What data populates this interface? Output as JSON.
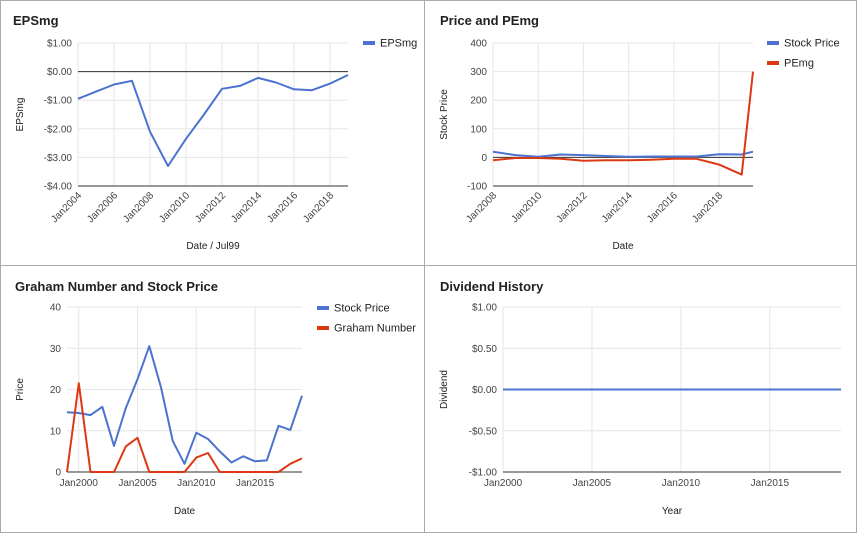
{
  "colors": {
    "blue": "#4c73cf",
    "red": "#dc3912",
    "grid": "#e6e6e6",
    "axis": "#333333"
  },
  "chart_data": [
    {
      "id": "eps",
      "type": "line",
      "title": "EPSmg",
      "xlabel": "Date / Jul99",
      "ylabel": "EPSmg",
      "xlim": [
        2004,
        2019
      ],
      "ylim": [
        -4,
        1
      ],
      "yticks": [
        1,
        0,
        -1,
        -2,
        -3,
        -4
      ],
      "ytick_labels": [
        "$1.00",
        "$0.00",
        "-$1.00",
        "-$2.00",
        "-$3.00",
        "-$4.00"
      ],
      "xticks": [
        2004,
        2006,
        2008,
        2010,
        2012,
        2014,
        2016,
        2018
      ],
      "xtick_labels": [
        "Jan2004",
        "Jan2006",
        "Jan2008",
        "Jan2010",
        "Jan2012",
        "Jan2014",
        "Jan2016",
        "Jan2018"
      ],
      "legend": "top-right",
      "series": [
        {
          "name": "EPSmg",
          "color": "#4c73cf",
          "x": [
            2004,
            2005,
            2006,
            2007,
            2008,
            2009,
            2010,
            2011,
            2012,
            2013,
            2014,
            2015,
            2016,
            2017,
            2018,
            2019
          ],
          "y": [
            -0.95,
            -0.7,
            -0.45,
            -0.32,
            -2.1,
            -3.3,
            -2.35,
            -1.5,
            -0.6,
            -0.5,
            -0.22,
            -0.38,
            -0.62,
            -0.65,
            -0.42,
            -0.12
          ]
        }
      ]
    },
    {
      "id": "pe",
      "type": "line",
      "title": "Price and PEmg",
      "xlabel": "Date",
      "ylabel": "Stock Price",
      "xlim": [
        2008,
        2019.5
      ],
      "ylim": [
        -100,
        400
      ],
      "yticks": [
        400,
        300,
        200,
        100,
        0,
        -100
      ],
      "ytick_labels": [
        "400",
        "300",
        "200",
        "100",
        "0",
        "-100"
      ],
      "xticks": [
        2008,
        2010,
        2012,
        2014,
        2016,
        2018
      ],
      "xtick_labels": [
        "Jan2008",
        "Jan2010",
        "Jan2012",
        "Jan2014",
        "Jan2016",
        "Jan2018"
      ],
      "legend": "top-right",
      "series": [
        {
          "name": "Stock Price",
          "color": "#4c73cf",
          "x": [
            2008,
            2009,
            2010,
            2011,
            2012,
            2013,
            2014,
            2015,
            2016,
            2017,
            2018,
            2019,
            2019.5
          ],
          "y": [
            20,
            8,
            2,
            10,
            8,
            5,
            2,
            3,
            3,
            3,
            11,
            10,
            20
          ]
        },
        {
          "name": "PEmg",
          "color": "#dc3912",
          "x": [
            2008,
            2009,
            2010,
            2011,
            2012,
            2013,
            2014,
            2015,
            2016,
            2017,
            2018,
            2019,
            2019.5
          ],
          "y": [
            -10,
            -2,
            -2,
            -5,
            -12,
            -10,
            -10,
            -8,
            -5,
            -5,
            -25,
            -60,
            300
          ]
        }
      ]
    },
    {
      "id": "graham",
      "type": "line",
      "title": "Graham Number and Stock Price",
      "xlabel": "Date",
      "ylabel": "Price",
      "xlim": [
        1999,
        2019
      ],
      "ylim": [
        0,
        40
      ],
      "yticks": [
        40,
        30,
        20,
        10,
        0
      ],
      "ytick_labels": [
        "40",
        "30",
        "20",
        "10",
        "0"
      ],
      "xticks": [
        2000,
        2005,
        2010,
        2015
      ],
      "xtick_labels": [
        "Jan2000",
        "Jan2005",
        "Jan2010",
        "Jan2015"
      ],
      "legend": "top-right",
      "series": [
        {
          "name": "Stock Price",
          "color": "#4c73cf",
          "x": [
            1999,
            2000,
            2001,
            2002,
            2003,
            2004,
            2005,
            2006,
            2007,
            2008,
            2009,
            2010,
            2011,
            2012,
            2013,
            2014,
            2015,
            2016,
            2017,
            2018,
            2019
          ],
          "y": [
            14.5,
            14.3,
            13.8,
            15.8,
            6.3,
            15.5,
            22.5,
            30.5,
            20.5,
            7.5,
            2,
            9.5,
            8,
            5,
            2.3,
            3.8,
            2.6,
            2.8,
            11.2,
            10.2,
            18.5
          ]
        },
        {
          "name": "Graham Number",
          "color": "#dc3912",
          "x": [
            1999,
            2000,
            2001,
            2002,
            2003,
            2004,
            2005,
            2006,
            2007,
            2008,
            2009,
            2010,
            2011,
            2012,
            2013,
            2014,
            2015,
            2016,
            2017,
            2018,
            2019
          ],
          "y": [
            0,
            21.5,
            0,
            0,
            0,
            6.2,
            8.3,
            0,
            0,
            0,
            0,
            3.5,
            4.6,
            0,
            0,
            0,
            0,
            0,
            0,
            2,
            3.3
          ]
        }
      ]
    },
    {
      "id": "dividend",
      "type": "line",
      "title": "Dividend History",
      "xlabel": "Year",
      "ylabel": "Dividend",
      "xlim": [
        2000,
        2019
      ],
      "ylim": [
        -1,
        1
      ],
      "yticks": [
        1,
        0.5,
        0,
        -0.5,
        -1
      ],
      "ytick_labels": [
        "$1.00",
        "$0.50",
        "$0.00",
        "-$0.50",
        "-$1.00"
      ],
      "xticks": [
        2000,
        2005,
        2010,
        2015
      ],
      "xtick_labels": [
        "Jan2000",
        "Jan2005",
        "Jan2010",
        "Jan2015"
      ],
      "legend": "none",
      "series": [
        {
          "name": "",
          "color": "#4c73cf",
          "x": [
            2000,
            2019
          ],
          "y": [
            0,
            0
          ]
        }
      ]
    }
  ]
}
